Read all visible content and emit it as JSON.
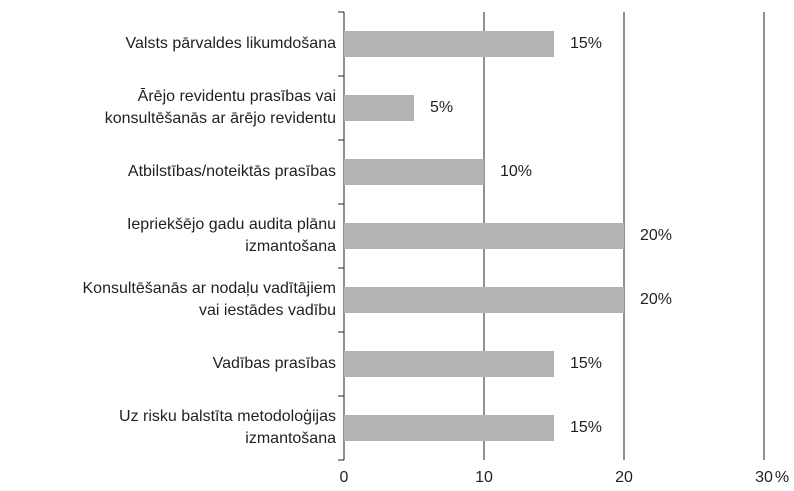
{
  "chart_data": {
    "type": "bar",
    "orientation": "horizontal",
    "categories": [
      [
        "Valsts pārvaldes likumdošana"
      ],
      [
        "Ārējo revidentu prasības vai",
        "konsultēšanās ar ārējo revidentu"
      ],
      [
        "Atbilstības/noteiktās prasības"
      ],
      [
        "Iepriekšējo gadu audita plānu",
        "izmantošana"
      ],
      [
        "Konsultēšanās ar nodaļu vadītājiem",
        "vai iestādes vadību"
      ],
      [
        "Vadības prasības"
      ],
      [
        "Uz risku balstīta metodoloģijas",
        "izmantošana"
      ]
    ],
    "values": [
      15,
      5,
      10,
      20,
      20,
      15,
      15
    ],
    "value_labels": [
      "15%",
      "5%",
      "10%",
      "20%",
      "20%",
      "15%",
      "15%"
    ],
    "color": "#b3b3b3",
    "xlim": [
      0,
      30
    ],
    "xticks": [
      0,
      10,
      20,
      30
    ],
    "x_label": "%",
    "grid": true
  }
}
